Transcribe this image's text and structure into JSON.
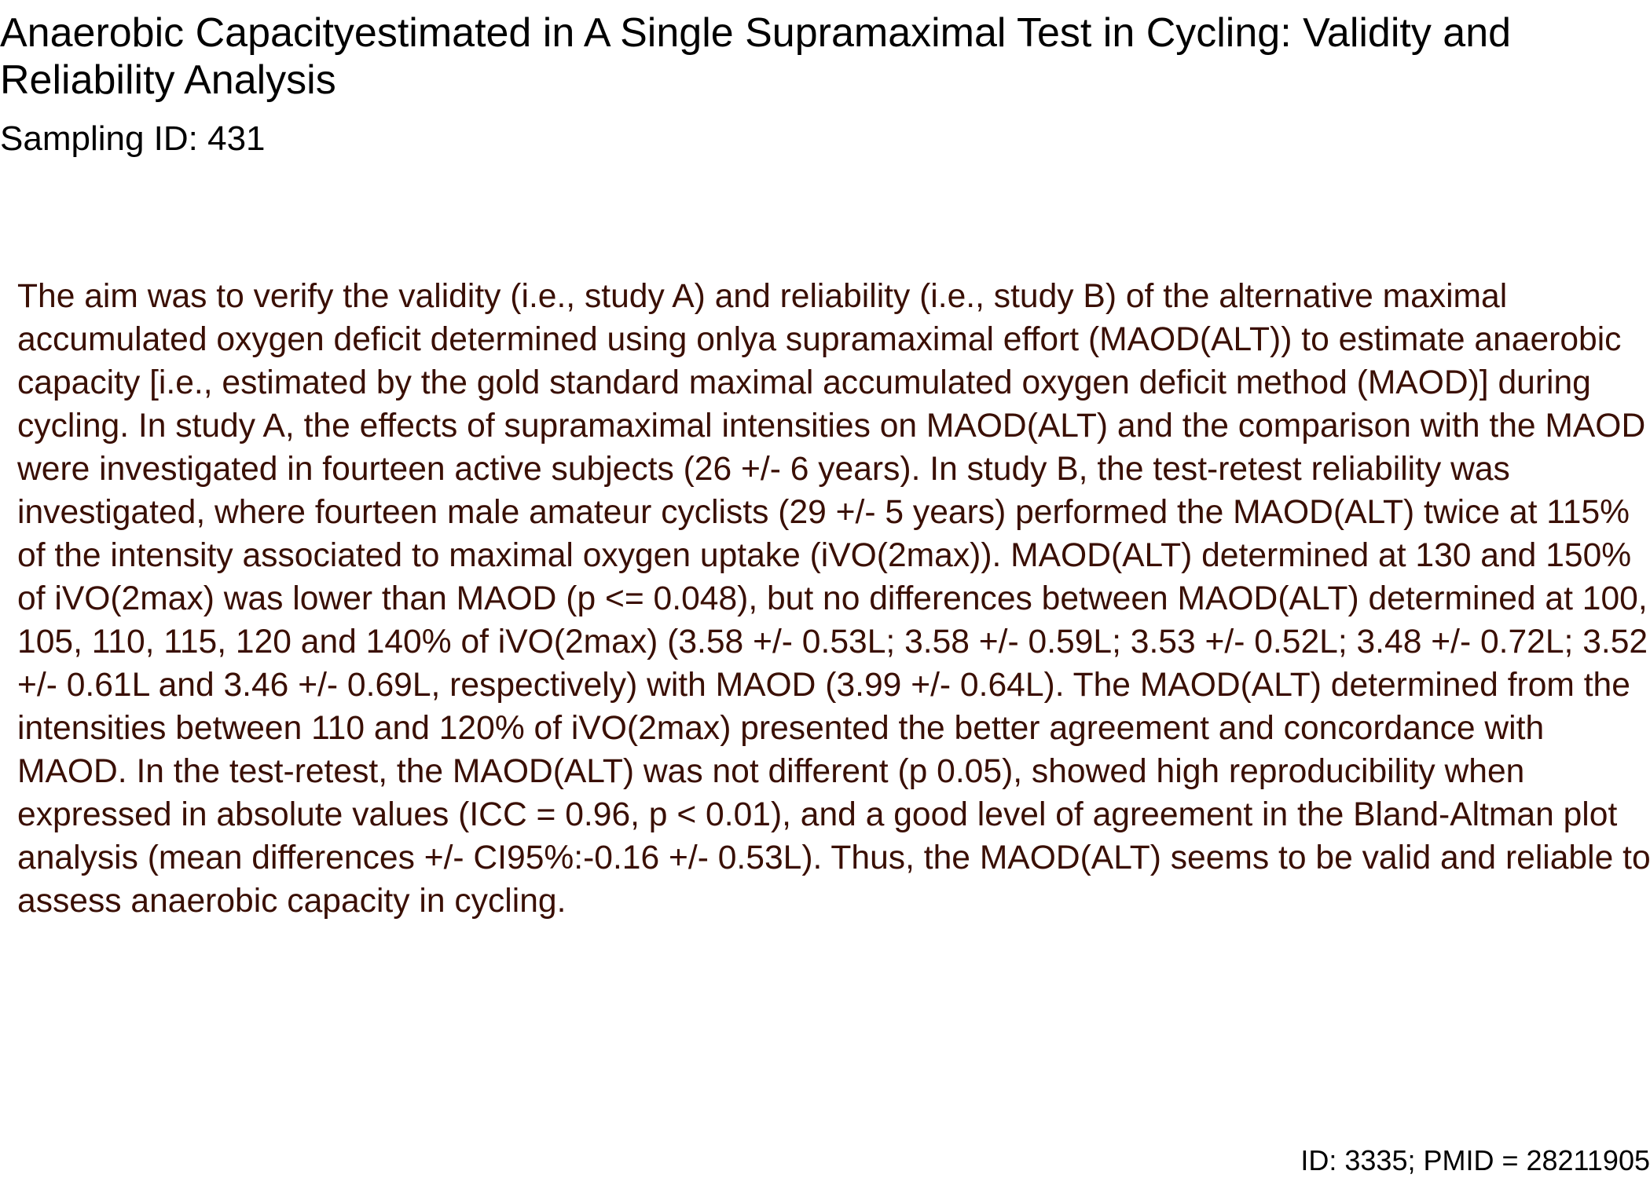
{
  "document": {
    "title": "Anaerobic Capacityestimated in A Single Supramaximal Test in Cycling: Validity and Reliability Analysis",
    "sampling_id": "Sampling ID: 431",
    "abstract": "The aim was to verify the validity (i.e., study A) and reliability (i.e., study B) of the alternative maximal accumulated oxygen deficit determined using onlya supramaximal effort (MAOD(ALT)) to estimate anaerobic capacity [i.e., estimated by the gold standard maximal accumulated oxygen deficit method (MAOD)] during cycling. In study A, the effects of supramaximal intensities on MAOD(ALT) and the comparison with the MAOD were investigated in fourteen active subjects (26 +/- 6 years). In study B, the test-retest reliability was investigated, where fourteen male amateur cyclists (29 +/- 5 years) performed the MAOD(ALT) twice at 115% of the intensity associated to maximal oxygen uptake (iVO(2max)). MAOD(ALT) determined at 130 and 150% of iVO(2max) was lower than MAOD (p <= 0.048), but no differences between MAOD(ALT) determined at 100, 105, 110, 115, 120 and 140% of iVO(2max) (3.58 +/- 0.53L; 3.58 +/- 0.59L; 3.53 +/- 0.52L; 3.48 +/- 0.72L; 3.52 +/- 0.61L and 3.46 +/- 0.69L, respectively) with MAOD (3.99 +/- 0.64L). The MAOD(ALT) determined from the intensities between 110 and 120% of iVO(2max) presented the better agreement and concordance with MAOD. In the test-retest, the MAOD(ALT) was not different (p 0.05), showed high reproducibility when expressed in absolute values (ICC = 0.96, p < 0.01), and a good level of agreement in the Bland-Altman plot analysis (mean differences +/- CI95%:-0.16 +/- 0.53L). Thus, the MAOD(ALT) seems to be valid and reliable to assess anaerobic capacity in cycling.",
    "footer_id": "ID: 3335; PMID = 28211905"
  },
  "colors": {
    "title_text": "#000000",
    "abstract_text": "#3a0f04",
    "background": "#ffffff"
  }
}
